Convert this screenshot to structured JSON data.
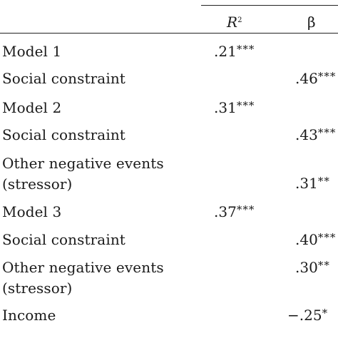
{
  "header": {
    "r2_label": "R",
    "r2_sup": "2",
    "beta_label": "β"
  },
  "rows": [
    {
      "label": "Model 1",
      "r2": ".21",
      "r2_stars": "***",
      "beta": "",
      "beta_stars": ""
    },
    {
      "label": "Social constraint",
      "r2": "",
      "r2_stars": "",
      "beta": ".46",
      "beta_stars": "***"
    },
    {
      "label": "Model 2",
      "r2": ".31",
      "r2_stars": "***",
      "beta": "",
      "beta_stars": ""
    },
    {
      "label": "Social constraint",
      "r2": "",
      "r2_stars": "",
      "beta": ".43",
      "beta_stars": "***"
    },
    {
      "label": "Other negative events",
      "label2": "(stressor)",
      "r2": "",
      "r2_stars": "",
      "beta": ".31",
      "beta_stars": "**"
    },
    {
      "label": "Model 3",
      "r2": ".37",
      "r2_stars": "***",
      "beta": "",
      "beta_stars": ""
    },
    {
      "label": "Social constraint",
      "r2": "",
      "r2_stars": "",
      "beta": ".40",
      "beta_stars": "***"
    },
    {
      "label": "Other negative events",
      "label2": "(stressor)",
      "r2": "",
      "r2_stars": "",
      "beta": ".30",
      "beta_stars": "**"
    },
    {
      "label": "Income",
      "r2": "",
      "r2_stars": "",
      "beta": "−.25",
      "beta_stars": "*"
    }
  ]
}
